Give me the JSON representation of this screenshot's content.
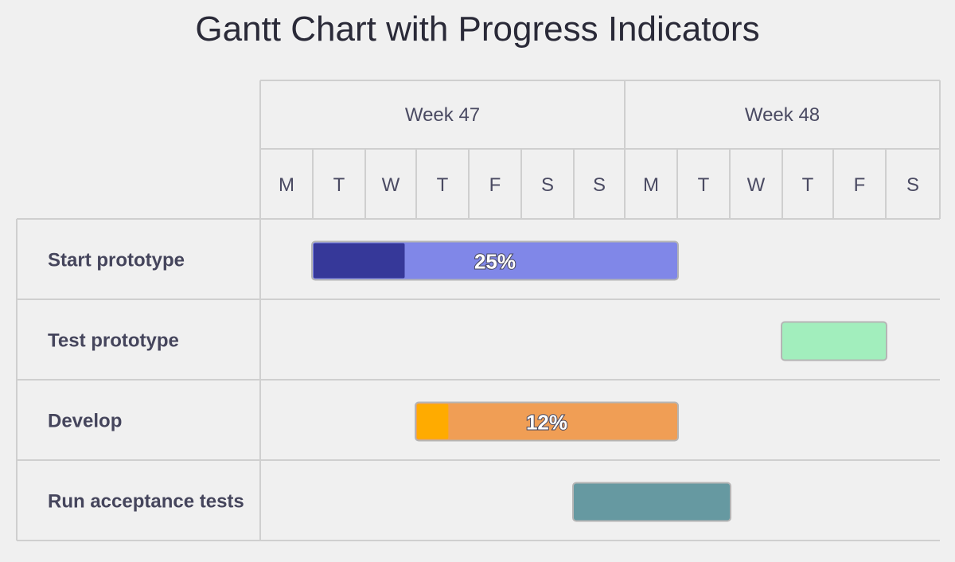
{
  "title": "Gantt Chart with Progress Indicators",
  "chart_data": {
    "type": "gantt",
    "title": "Gantt Chart with Progress Indicators",
    "weeks": [
      {
        "label": "Week 47",
        "day_count": 7
      },
      {
        "label": "Week 48",
        "day_count": 6
      }
    ],
    "days": [
      "M",
      "T",
      "W",
      "T",
      "F",
      "S",
      "S",
      "M",
      "T",
      "W",
      "T",
      "F",
      "S"
    ],
    "tasks": [
      {
        "name": "Start prototype",
        "start_day": 1,
        "end_day": 8,
        "completed": 0.25,
        "completed_label": "25%",
        "color": "#8087e8",
        "progress_color": "#363899"
      },
      {
        "name": "Test prototype",
        "start_day": 10,
        "end_day": 12,
        "completed": null,
        "completed_label": "",
        "color": "#a2eebd",
        "progress_color": ""
      },
      {
        "name": "Develop",
        "start_day": 3,
        "end_day": 8,
        "completed": 0.12,
        "completed_label": "12%",
        "color": "#f09e55",
        "progress_color": "#ffab00"
      },
      {
        "name": "Run acceptance tests",
        "start_day": 6,
        "end_day": 9,
        "completed": null,
        "completed_label": "",
        "color": "#6699a1",
        "progress_color": ""
      }
    ],
    "colors": {
      "grid": "#cfcfcf",
      "bar_border": "#b5b5b5"
    }
  }
}
